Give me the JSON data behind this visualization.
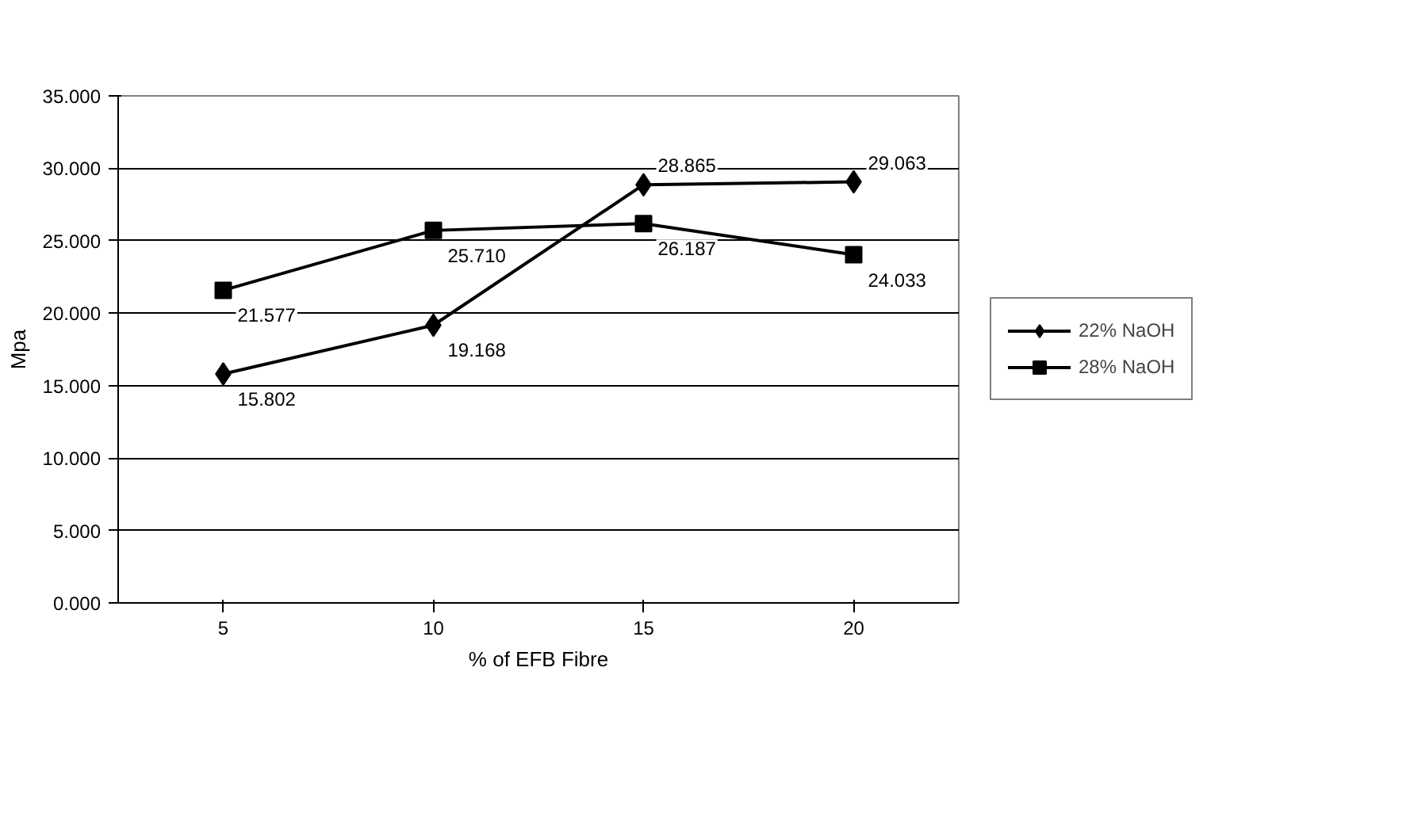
{
  "chart_data": {
    "type": "line",
    "xlabel": "% of EFB Fibre",
    "ylabel": "Mpa",
    "categories": [
      "5",
      "10",
      "15",
      "20"
    ],
    "series": [
      {
        "name": "22% NaOH",
        "color": "#000000",
        "marker": "diamond",
        "values": [
          15.802,
          19.168,
          28.865,
          29.063
        ],
        "value_labels": [
          "15.802",
          "19.168",
          "28.865",
          "29.063"
        ]
      },
      {
        "name": "28% NaOH",
        "color": "#000000",
        "marker": "square",
        "values": [
          21.577,
          25.71,
          26.187,
          24.033
        ],
        "value_labels": [
          "21.577",
          "25.710",
          "26.187",
          "24.033"
        ]
      }
    ],
    "ylim": [
      0,
      35
    ],
    "yticks": [
      {
        "value": 0,
        "label": "0.000"
      },
      {
        "value": 5,
        "label": "5.000"
      },
      {
        "value": 10,
        "label": "10.000"
      },
      {
        "value": 15,
        "label": "15.000"
      },
      {
        "value": 20,
        "label": "20.000"
      },
      {
        "value": 25,
        "label": "25.000"
      },
      {
        "value": 30,
        "label": "30.000"
      },
      {
        "value": 35,
        "label": "35.000"
      }
    ],
    "grid": "y",
    "legend": "right",
    "line_style": "solid"
  }
}
